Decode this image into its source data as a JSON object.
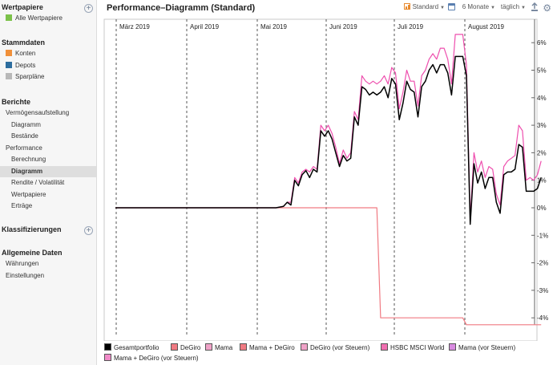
{
  "sidebar": {
    "sections": [
      {
        "label": "Wertpapiere",
        "add": true,
        "items": [
          {
            "label": "Alle Wertpapiere",
            "swatch": "#7cc24a"
          }
        ]
      },
      {
        "label": "Stammdaten",
        "add": false,
        "items": [
          {
            "label": "Konten",
            "swatch": "#f0903a"
          },
          {
            "label": "Depots",
            "swatch": "#2d6d9e"
          },
          {
            "label": "Sparpläne",
            "swatch": "#b8b8b8"
          }
        ]
      },
      {
        "label": "Berichte",
        "add": false,
        "items": [
          {
            "label": "Vermögensaufstellung",
            "level": 1
          },
          {
            "label": "Diagramm",
            "level": 2
          },
          {
            "label": "Bestände",
            "level": 2
          },
          {
            "label": "Performance",
            "level": 1
          },
          {
            "label": "Berechnung",
            "level": 2
          },
          {
            "label": "Diagramm",
            "level": 2,
            "selected": true
          },
          {
            "label": "Rendite / Volatilität",
            "level": 2
          },
          {
            "label": "Wertpapiere",
            "level": 2
          },
          {
            "label": "Erträge",
            "level": 2
          }
        ]
      },
      {
        "label": "Klassifizierungen",
        "add": true,
        "items": []
      },
      {
        "label": "Allgemeine Daten",
        "add": false,
        "items": [
          {
            "label": "Währungen",
            "level": 1
          },
          {
            "label": "Einstellungen",
            "level": 1
          }
        ]
      }
    ]
  },
  "header": {
    "title": "Performance–Diagramm (Standard)",
    "view_label": "Standard",
    "period_label": "6 Monate",
    "interval_label": "täglich",
    "calendar_icon": "calendar-icon",
    "export_icon": "export-icon",
    "settings_icon": "gear-icon",
    "accent": "#e88a2e"
  },
  "chart_data": {
    "type": "line",
    "x_axis": "top",
    "x_ticks": [
      "März 2019",
      "April 2019",
      "Mai 2019",
      "Juni 2019",
      "Juli 2019",
      "August 2019"
    ],
    "y_axis": "right",
    "y_ticks": [
      "6%",
      "5%",
      "4%",
      "3%",
      "2%",
      "1%",
      "0%",
      "-1%",
      "-2%",
      "-3%",
      "-4%"
    ],
    "ylim": [
      -4.5,
      6.3
    ],
    "grid": "vertical-dashed",
    "series": [
      {
        "name": "Gesamtportfolio",
        "color": "#000000",
        "width": 1.5,
        "points": [
          [
            0,
            0
          ],
          [
            10,
            0
          ],
          [
            20,
            0
          ],
          [
            30,
            0
          ],
          [
            40,
            0
          ],
          [
            50,
            0
          ],
          [
            60,
            0
          ],
          [
            70,
            0
          ],
          [
            80,
            0
          ],
          [
            86,
            0
          ],
          [
            90,
            0.05
          ],
          [
            92,
            0.2
          ],
          [
            94,
            0.1
          ],
          [
            96,
            1.0
          ],
          [
            98,
            0.8
          ],
          [
            100,
            1.2
          ],
          [
            102,
            1.35
          ],
          [
            104,
            1.1
          ],
          [
            106,
            1.4
          ],
          [
            108,
            1.3
          ],
          [
            110,
            2.8
          ],
          [
            112,
            2.6
          ],
          [
            114,
            2.8
          ],
          [
            116,
            2.5
          ],
          [
            118,
            2.0
          ],
          [
            120,
            1.5
          ],
          [
            122,
            1.9
          ],
          [
            124,
            1.7
          ],
          [
            126,
            1.8
          ],
          [
            128,
            3.3
          ],
          [
            130,
            3.0
          ],
          [
            132,
            4.4
          ],
          [
            134,
            4.3
          ],
          [
            136,
            4.1
          ],
          [
            138,
            4.2
          ],
          [
            140,
            4.1
          ],
          [
            142,
            4.2
          ],
          [
            144,
            4.4
          ],
          [
            146,
            4.0
          ],
          [
            148,
            4.7
          ],
          [
            150,
            4.5
          ],
          [
            152,
            3.2
          ],
          [
            154,
            3.8
          ],
          [
            156,
            4.6
          ],
          [
            158,
            4.3
          ],
          [
            160,
            4.2
          ],
          [
            162,
            3.3
          ],
          [
            164,
            4.4
          ],
          [
            166,
            4.6
          ],
          [
            168,
            5.0
          ],
          [
            170,
            5.2
          ],
          [
            172,
            4.9
          ],
          [
            174,
            5.2
          ],
          [
            176,
            5.2
          ],
          [
            178,
            4.9
          ],
          [
            180,
            4.1
          ],
          [
            182,
            5.5
          ],
          [
            184,
            5.5
          ],
          [
            186,
            5.5
          ],
          [
            188,
            4.8
          ],
          [
            190,
            -0.6
          ],
          [
            192,
            1.6
          ],
          [
            194,
            0.9
          ],
          [
            196,
            1.3
          ],
          [
            198,
            0.7
          ],
          [
            200,
            1.1
          ],
          [
            202,
            1.1
          ],
          [
            204,
            0.2
          ],
          [
            206,
            -0.2
          ],
          [
            208,
            1.2
          ],
          [
            210,
            1.3
          ],
          [
            212,
            1.3
          ],
          [
            214,
            1.4
          ],
          [
            216,
            2.3
          ],
          [
            218,
            2.2
          ],
          [
            220,
            0.6
          ],
          [
            222,
            0.6
          ],
          [
            224,
            0.6
          ],
          [
            226,
            0.7
          ],
          [
            228,
            1.1
          ]
        ]
      },
      {
        "name": "DeGiro",
        "color": "#f07a82",
        "width": 1.2,
        "points": [
          [
            0,
            0
          ],
          [
            40,
            0
          ],
          [
            80,
            0
          ],
          [
            86,
            0
          ],
          [
            120,
            0
          ],
          [
            140,
            0
          ],
          [
            142,
            -4.0
          ],
          [
            160,
            -4.0
          ],
          [
            180,
            -4.0
          ],
          [
            186,
            -4.0
          ],
          [
            188,
            -4.25
          ],
          [
            200,
            -4.25
          ],
          [
            228,
            -4.25
          ]
        ]
      },
      {
        "name": "Mama",
        "color": "#ee4fae",
        "width": 1.2,
        "points": [
          [
            0,
            0
          ],
          [
            80,
            0
          ],
          [
            86,
            0
          ],
          [
            90,
            0.05
          ],
          [
            92,
            0.2
          ],
          [
            94,
            0.2
          ],
          [
            96,
            1.1
          ],
          [
            98,
            0.9
          ],
          [
            100,
            1.3
          ],
          [
            102,
            1.4
          ],
          [
            104,
            1.3
          ],
          [
            106,
            1.5
          ],
          [
            108,
            1.4
          ],
          [
            110,
            3.0
          ],
          [
            112,
            2.8
          ],
          [
            114,
            3.0
          ],
          [
            116,
            2.7
          ],
          [
            118,
            2.2
          ],
          [
            120,
            1.6
          ],
          [
            122,
            2.1
          ],
          [
            124,
            1.8
          ],
          [
            126,
            2.0
          ],
          [
            128,
            3.5
          ],
          [
            130,
            3.2
          ],
          [
            132,
            4.8
          ],
          [
            134,
            4.6
          ],
          [
            136,
            4.5
          ],
          [
            138,
            4.6
          ],
          [
            140,
            4.5
          ],
          [
            142,
            4.6
          ],
          [
            144,
            4.8
          ],
          [
            146,
            4.5
          ],
          [
            148,
            5.1
          ],
          [
            150,
            4.9
          ],
          [
            152,
            3.6
          ],
          [
            154,
            4.2
          ],
          [
            156,
            5.0
          ],
          [
            158,
            4.6
          ],
          [
            160,
            4.6
          ],
          [
            162,
            3.7
          ],
          [
            164,
            4.8
          ],
          [
            166,
            5.0
          ],
          [
            168,
            5.4
          ],
          [
            170,
            5.6
          ],
          [
            172,
            5.4
          ],
          [
            174,
            5.8
          ],
          [
            176,
            5.8
          ],
          [
            178,
            5.4
          ],
          [
            180,
            4.5
          ],
          [
            182,
            6.3
          ],
          [
            184,
            6.3
          ],
          [
            186,
            6.3
          ],
          [
            188,
            5.2
          ],
          [
            190,
            -0.4
          ],
          [
            192,
            2.0
          ],
          [
            194,
            1.3
          ],
          [
            196,
            1.7
          ],
          [
            198,
            1.1
          ],
          [
            200,
            1.5
          ],
          [
            202,
            1.4
          ],
          [
            204,
            0.5
          ],
          [
            206,
            0.1
          ],
          [
            208,
            1.5
          ],
          [
            210,
            1.7
          ],
          [
            212,
            1.8
          ],
          [
            214,
            1.9
          ],
          [
            216,
            3.0
          ],
          [
            218,
            2.8
          ],
          [
            220,
            1.0
          ],
          [
            222,
            1.1
          ],
          [
            224,
            1.0
          ],
          [
            226,
            1.2
          ],
          [
            228,
            1.7
          ]
        ]
      }
    ],
    "legend": [
      {
        "name": "Gesamtportfolio",
        "color": "#000000"
      },
      {
        "name": "DeGiro",
        "color": "#f07a82"
      },
      {
        "name": "Mama",
        "color": "#f0a3c8"
      },
      {
        "name": "Mama + DeGiro",
        "color": "#f07a82"
      },
      {
        "name": "DeGiro (vor Steuern)",
        "color": "#f0a3c8"
      },
      {
        "name": "HSBC MSCI World",
        "color": "#f06fb0"
      },
      {
        "name": "Mama (vor Steuern)",
        "color": "#d88ae0"
      },
      {
        "name": "Mama + DeGiro (vor Steuern)",
        "color": "#f08ac8"
      }
    ]
  }
}
